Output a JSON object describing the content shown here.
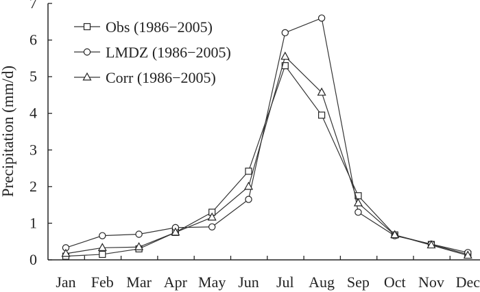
{
  "chart_data": {
    "type": "line",
    "title": "",
    "xlabel": "",
    "ylabel": "Precipitation (mm/d)",
    "categories": [
      "Jan",
      "Feb",
      "Mar",
      "Apr",
      "May",
      "Jun",
      "Jul",
      "Aug",
      "Sep",
      "Oct",
      "Nov",
      "Dec"
    ],
    "ylim": [
      0,
      7
    ],
    "yticks": [
      "0",
      "1",
      "2",
      "3",
      "4",
      "5",
      "6",
      "7"
    ],
    "legend_position": "top-left",
    "series": [
      {
        "name": "Obs (1986−2005)",
        "marker": "square",
        "values": [
          0.1,
          0.15,
          0.3,
          0.75,
          1.3,
          2.42,
          5.3,
          3.95,
          1.75,
          0.68,
          0.42,
          0.15
        ]
      },
      {
        "name": "LMDZ (1986−2005)",
        "marker": "circle",
        "values": [
          0.33,
          0.66,
          0.7,
          0.88,
          0.9,
          1.65,
          6.2,
          6.6,
          1.3,
          0.66,
          0.43,
          0.2
        ]
      },
      {
        "name": "Corr (1986−2005)",
        "marker": "triangle",
        "values": [
          0.17,
          0.33,
          0.35,
          0.75,
          1.16,
          2.0,
          5.55,
          4.57,
          1.55,
          0.68,
          0.4,
          0.12
        ]
      }
    ]
  }
}
